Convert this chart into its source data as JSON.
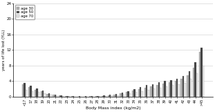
{
  "categories": [
    "<17",
    "17",
    "18",
    "19",
    "20",
    "21",
    "22",
    "23",
    "24",
    "25",
    "26",
    "27",
    "28",
    "29",
    "30",
    "31",
    "32",
    "33",
    "34",
    "35",
    "36",
    "37",
    "38",
    "39",
    "40",
    "41",
    "42",
    "43",
    "44",
    ">45"
  ],
  "age30": [
    3.2,
    2.5,
    1.8,
    1.3,
    0.7,
    0.45,
    0.25,
    0.1,
    0.05,
    0.02,
    0.02,
    0.05,
    0.1,
    0.18,
    0.3,
    0.5,
    0.75,
    1.1,
    1.5,
    1.9,
    2.3,
    2.7,
    3.0,
    3.3,
    3.7,
    4.0,
    4.5,
    5.5,
    7.5,
    11.5
  ],
  "age50": [
    3.5,
    2.8,
    2.1,
    1.5,
    0.9,
    0.55,
    0.3,
    0.15,
    0.08,
    0.04,
    0.04,
    0.08,
    0.15,
    0.25,
    0.45,
    0.65,
    1.0,
    1.4,
    1.9,
    2.4,
    2.9,
    3.2,
    3.6,
    4.0,
    4.3,
    4.6,
    5.2,
    6.5,
    8.8,
    12.5
  ],
  "age70": [
    1.7,
    1.4,
    1.1,
    0.8,
    0.45,
    0.25,
    0.15,
    0.07,
    0.03,
    0.01,
    0.01,
    0.03,
    0.07,
    0.12,
    0.22,
    0.35,
    0.55,
    0.8,
    1.1,
    1.4,
    1.7,
    2.0,
    2.3,
    2.6,
    2.9,
    3.1,
    3.5,
    4.5,
    6.0,
    8.0
  ],
  "color30": "#b0b0b0",
  "color50": "#404040",
  "color70": "#e8e8e8",
  "ylabel": "years of life lost (YLL)",
  "xlabel": "Body Mass index (kg/m2)",
  "ylim": [
    0,
    24
  ],
  "yticks": [
    0,
    4,
    8,
    12,
    16,
    20,
    24
  ],
  "legend_labels": [
    "age 30",
    "age 50",
    "age 70"
  ],
  "background_color": "#ffffff"
}
